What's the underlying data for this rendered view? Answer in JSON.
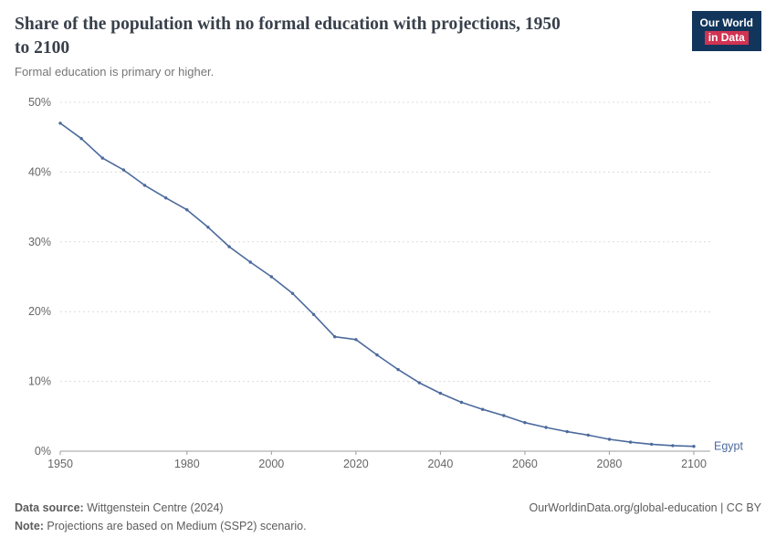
{
  "logo": {
    "line1": "Our World",
    "line2": "in Data",
    "bg": "#12355b",
    "accent": "#d13352"
  },
  "chart_data": {
    "type": "line",
    "title": "Share of the population with no formal education with projections, 1950 to 2100",
    "subtitle": "Formal education is primary or higher.",
    "xlabel": "",
    "ylabel": "",
    "xlim": [
      1950,
      2100
    ],
    "ylim": [
      0,
      50
    ],
    "grid": "horizontal-dashed",
    "legend_position": "end-of-line",
    "x_ticks": [
      {
        "value": 1950,
        "label": "1950"
      },
      {
        "value": 1980,
        "label": "1980"
      },
      {
        "value": 2000,
        "label": "2000"
      },
      {
        "value": 2020,
        "label": "2020"
      },
      {
        "value": 2040,
        "label": "2040"
      },
      {
        "value": 2060,
        "label": "2060"
      },
      {
        "value": 2080,
        "label": "2080"
      },
      {
        "value": 2100,
        "label": "2100"
      }
    ],
    "y_ticks": [
      {
        "value": 0,
        "label": "0%"
      },
      {
        "value": 10,
        "label": "10%"
      },
      {
        "value": 20,
        "label": "20%"
      },
      {
        "value": 30,
        "label": "30%"
      },
      {
        "value": 40,
        "label": "40%"
      },
      {
        "value": 50,
        "label": "50%"
      }
    ],
    "series": [
      {
        "name": "Egypt",
        "color": "#4c6a9c",
        "x": [
          1950,
          1955,
          1960,
          1965,
          1970,
          1975,
          1980,
          1985,
          1990,
          1995,
          2000,
          2005,
          2010,
          2015,
          2020,
          2025,
          2030,
          2035,
          2040,
          2045,
          2050,
          2055,
          2060,
          2065,
          2070,
          2075,
          2080,
          2085,
          2090,
          2095,
          2100
        ],
        "values": [
          47.0,
          44.8,
          42.0,
          40.3,
          38.1,
          36.3,
          34.6,
          32.1,
          29.3,
          27.1,
          25.0,
          22.6,
          19.6,
          16.4,
          16.0,
          13.8,
          11.7,
          9.8,
          8.3,
          7.0,
          6.0,
          5.1,
          4.1,
          3.4,
          2.8,
          2.3,
          1.7,
          1.3,
          1.0,
          0.8,
          0.7
        ]
      }
    ]
  },
  "footer": {
    "source_label": "Data source:",
    "source_text": " Wittgenstein Centre (2024)",
    "note_label": "Note:",
    "note_text": " Projections are based on Medium (SSP2) scenario.",
    "link": "OurWorldinData.org/global-education | CC BY"
  }
}
